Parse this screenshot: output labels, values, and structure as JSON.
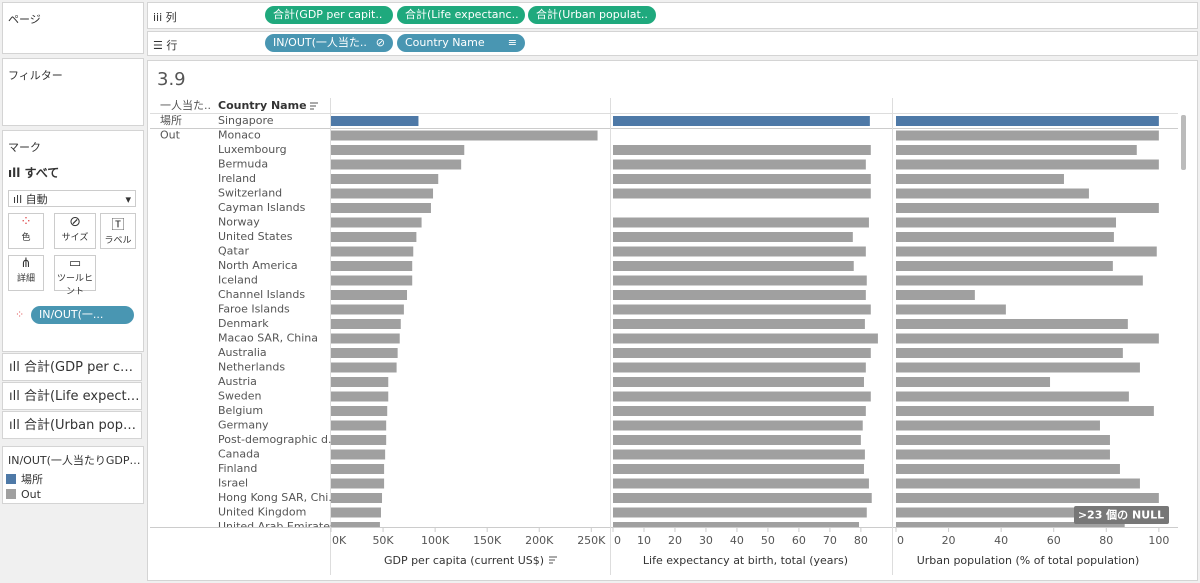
{
  "shelves": {
    "pages": "ページ",
    "columns": {
      "label": "列",
      "pills": [
        "合計(GDP per capit..",
        "合計(Life expectanc..",
        "合計(Urban populat.."
      ]
    },
    "rows": {
      "label": "行",
      "pills": [
        "IN/OUT(一人当た..",
        "Country Name"
      ]
    }
  },
  "filters": {
    "title": "フィルター"
  },
  "marks": {
    "title": "マーク",
    "all": "すべて",
    "mark_type": "自動",
    "buttons": [
      "色",
      "サイズ",
      "ラベル",
      "詳細",
      "ツールヒント"
    ],
    "color_pill": "IN/OUT(一...",
    "measures": [
      "合計(GDP per c…",
      "合計(Life expect…",
      "合計(Urban pop…"
    ]
  },
  "legend": {
    "title": "IN/OUT(一人当たりGDP…",
    "items": [
      {
        "label": "場所",
        "color": "#4e79a7"
      },
      {
        "label": "Out",
        "color": "#a0a0a0"
      }
    ]
  },
  "chart_data": {
    "type": "bar",
    "orientation": "horizontal",
    "title": "3.9",
    "row_headers": [
      "一人当た..",
      "Country Name"
    ],
    "null_indicator": ">23 個の NULL",
    "categories": [
      "Singapore",
      "Monaco",
      "Luxembourg",
      "Bermuda",
      "Ireland",
      "Switzerland",
      "Cayman Islands",
      "Norway",
      "United States",
      "Qatar",
      "North America",
      "Iceland",
      "Channel Islands",
      "Faroe Islands",
      "Denmark",
      "Macao SAR, China",
      "Australia",
      "Netherlands",
      "Austria",
      "Sweden",
      "Belgium",
      "Germany",
      "Post-demographic d..",
      "Canada",
      "Finland",
      "Israel",
      "Hong Kong SAR, Chi..",
      "United Kingdom",
      "United Arab Emirates"
    ],
    "group_labels": [
      "場所",
      "Out",
      null,
      null,
      null,
      null,
      null,
      null,
      null,
      null,
      null,
      null,
      null,
      null,
      null,
      null,
      null,
      null,
      null,
      null,
      null,
      null,
      null,
      null,
      null,
      null,
      null,
      null,
      null
    ],
    "series": [
      {
        "name": "GDP per capita (current US$)",
        "xlim": [
          0,
          267000
        ],
        "xticks": [
          {
            "value": 0,
            "label": "0K"
          },
          {
            "value": 50000,
            "label": "50K"
          },
          {
            "value": 100000,
            "label": "100K"
          },
          {
            "value": 150000,
            "label": "150K"
          },
          {
            "value": 200000,
            "label": "200K"
          },
          {
            "value": 250000,
            "label": "250K"
          }
        ],
        "values": [
          84000,
          256000,
          128000,
          125000,
          103000,
          98000,
          96000,
          87000,
          82000,
          79000,
          78000,
          78000,
          73000,
          70000,
          67000,
          66000,
          64000,
          63000,
          55000,
          55000,
          54000,
          53000,
          53000,
          52000,
          51000,
          51000,
          49000,
          48000,
          47000
        ]
      },
      {
        "name": "Life expectancy at birth, total (years)",
        "xlim": [
          0,
          89.4
        ],
        "xticks": [
          0,
          10,
          20,
          30,
          40,
          50,
          60,
          70,
          80
        ],
        "values": [
          82.9,
          null,
          83.2,
          81.6,
          83.2,
          83.2,
          null,
          82.6,
          77.4,
          81.6,
          77.7,
          81.9,
          81.6,
          83.2,
          81.3,
          85.5,
          83.2,
          81.6,
          81.0,
          83.2,
          81.6,
          80.6,
          80.0,
          81.3,
          81.0,
          82.6,
          83.5,
          81.9,
          79.4
        ]
      },
      {
        "name": "Urban population (% of total population)",
        "xlim": [
          0,
          105
        ],
        "xticks": [
          0,
          20,
          40,
          60,
          80,
          100
        ],
        "values": [
          100,
          100,
          91.6,
          100,
          63.9,
          73.4,
          100,
          83.7,
          82.9,
          99.2,
          82.5,
          93.9,
          30,
          41.8,
          88.2,
          100,
          86.3,
          92.8,
          58.6,
          88.6,
          98.1,
          77.6,
          81.4,
          81.4,
          85.2,
          92.8,
          100,
          84.4,
          87
        ]
      }
    ]
  }
}
